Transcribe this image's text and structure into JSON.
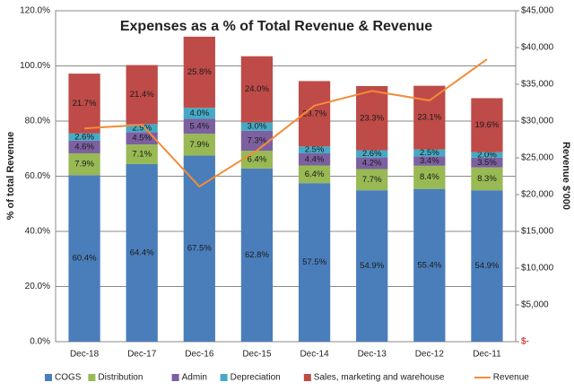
{
  "chart_data": {
    "type": "bar",
    "stacked": true,
    "title": "Expenses as a % of Total Revenue & Revenue",
    "ylabel": "% of total Revenue",
    "y2label": "Revenue $'000",
    "categories": [
      "Dec-18",
      "Dec-17",
      "Dec-16",
      "Dec-15",
      "Dec-14",
      "Dec-13",
      "Dec-12",
      "Dec-11"
    ],
    "ylim": [
      0,
      120
    ],
    "yticks": [
      {
        "value": 0,
        "label": "0.0%"
      },
      {
        "value": 20,
        "label": "20.0%"
      },
      {
        "value": 40,
        "label": "40.0%"
      },
      {
        "value": 60,
        "label": "60.0%"
      },
      {
        "value": 80,
        "label": "80.0%"
      },
      {
        "value": 100,
        "label": "100.0%"
      },
      {
        "value": 120,
        "label": "120.0%"
      }
    ],
    "y2lim": [
      0,
      45000
    ],
    "y2ticks": [
      {
        "value": 0,
        "label": "$-"
      },
      {
        "value": 5000,
        "label": "$5,000"
      },
      {
        "value": 10000,
        "label": "$10,000"
      },
      {
        "value": 15000,
        "label": "$15,000"
      },
      {
        "value": 20000,
        "label": "$20,000"
      },
      {
        "value": 25000,
        "label": "$25,000"
      },
      {
        "value": 30000,
        "label": "$30,000"
      },
      {
        "value": 35000,
        "label": "$35,000"
      },
      {
        "value": 40000,
        "label": "$40,000"
      },
      {
        "value": 45000,
        "label": "$45,000"
      }
    ],
    "grid": true,
    "legend": "bottom",
    "series": [
      {
        "name": "COGS",
        "color": "#4a7ebb",
        "values": [
          60.4,
          64.4,
          67.5,
          62.8,
          57.5,
          54.9,
          55.4,
          54.9
        ],
        "value_labels": [
          "60.4%",
          "64.4%",
          "67.5%",
          "62.8%",
          "57.5%",
          "54.9%",
          "55.4%",
          "54.9%"
        ]
      },
      {
        "name": "Distribution",
        "color": "#98b954",
        "values": [
          7.9,
          7.1,
          7.9,
          6.4,
          6.4,
          7.7,
          8.4,
          8.3
        ],
        "value_labels": [
          "7.9%",
          "7.1%",
          "7.9%",
          "6.4%",
          "6.4%",
          "7.7%",
          "8.4%",
          "8.3%"
        ]
      },
      {
        "name": "Admin",
        "color": "#7d60a0",
        "values": [
          4.6,
          4.5,
          5.4,
          7.3,
          4.4,
          4.2,
          3.4,
          3.5
        ],
        "value_labels": [
          "4.6%",
          "4.5%",
          "5.4%",
          "7.3%",
          "4.4%",
          "4.2%",
          "3.4%",
          "3.5%"
        ]
      },
      {
        "name": "Depreciation",
        "color": "#46aac5",
        "values": [
          2.6,
          2.9,
          4.0,
          3.0,
          2.5,
          2.6,
          2.5,
          2.0
        ],
        "value_labels": [
          "2.6%",
          "2.9%",
          "4.0%",
          "3.0%",
          "2.5%",
          "2.6%",
          "2.5%",
          "2.0%"
        ]
      },
      {
        "name": "Sales, marketing and warehouse",
        "color": "#be4b48",
        "values": [
          21.7,
          21.4,
          25.8,
          24.0,
          23.7,
          23.3,
          23.1,
          19.6
        ],
        "value_labels": [
          "21.7%",
          "21.4%",
          "25.8%",
          "24.0%",
          "23.7%",
          "23.3%",
          "23.1%",
          "19.6%"
        ]
      },
      {
        "name": "Revenue",
        "type": "line",
        "axis": "y2",
        "color": "#f38b36",
        "values": [
          29000,
          29500,
          21100,
          26000,
          32100,
          34100,
          32800,
          38400
        ]
      }
    ]
  }
}
